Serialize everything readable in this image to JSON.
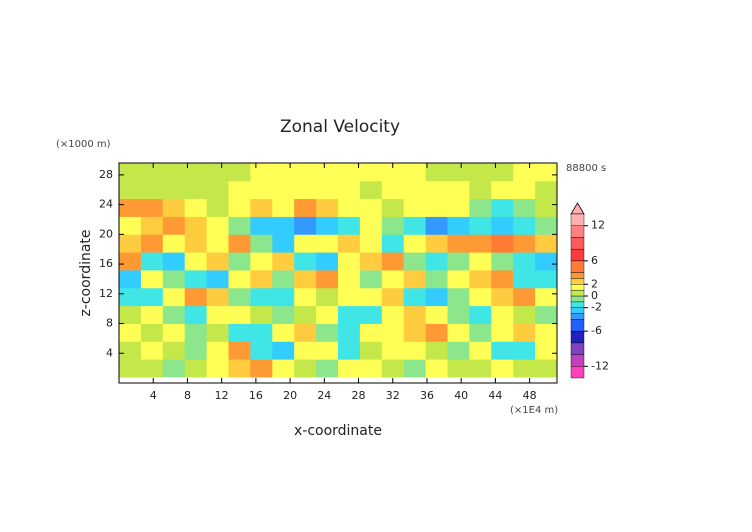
{
  "chart_data": {
    "type": "heatmap",
    "title": "Zonal Velocity",
    "y_unit": "(×1000 m)",
    "x_unit": "(×1E4 m)",
    "time_label": "88800 s",
    "xlabel": "x-coordinate",
    "ylabel": "z-coordinate",
    "xlim": [
      0,
      51.2
    ],
    "ylim": [
      0,
      29.6
    ],
    "xticks": [
      4,
      8,
      12,
      16,
      20,
      24,
      28,
      32,
      36,
      40,
      44,
      48
    ],
    "yticks": [
      4,
      8,
      12,
      16,
      20,
      24,
      28
    ],
    "x": [
      1.28,
      3.84,
      6.4,
      8.96,
      11.52,
      14.08,
      16.64,
      19.2,
      21.76,
      24.32,
      26.88,
      29.44,
      32,
      34.56,
      37.12,
      39.68,
      42.24,
      44.8,
      47.36,
      49.92
    ],
    "y": [
      2.0,
      4.4,
      6.8,
      9.2,
      11.6,
      14,
      16.4,
      18.8,
      21.2,
      23.6,
      26,
      28.4
    ],
    "z": [
      [
        0.5,
        0.5,
        -0.5,
        0.5,
        1.5,
        2.5,
        3,
        1.5,
        0.5,
        -0.5,
        1,
        1.5,
        0.5,
        -0.5,
        1,
        0.5,
        0.5,
        1,
        0.5,
        0.5
      ],
      [
        0.5,
        1.5,
        0.5,
        -1,
        1.5,
        3,
        -2,
        -2.5,
        1,
        1.5,
        -1.5,
        0.5,
        1.5,
        1,
        0.5,
        -1,
        1.5,
        -2,
        -1.5,
        1
      ],
      [
        1,
        0.5,
        1.5,
        -1,
        0.5,
        -2,
        -1.5,
        1.5,
        2.5,
        -1,
        -2,
        1,
        1.5,
        2.5,
        3,
        1.5,
        -1,
        1.5,
        2.5,
        1.5
      ],
      [
        0.5,
        1.5,
        -1,
        -2,
        1,
        1.5,
        0.5,
        -1,
        0.5,
        1.5,
        -1.5,
        -2,
        1,
        2.5,
        1.5,
        -1,
        -2,
        1.5,
        0.5,
        -1
      ],
      [
        -2,
        -1.5,
        1.5,
        3,
        2.5,
        -1,
        -2,
        -1.5,
        1,
        0.5,
        1.5,
        1,
        2.5,
        -2,
        -3,
        -1,
        1.5,
        2.5,
        3,
        1
      ],
      [
        -2.5,
        1.5,
        -1,
        -2,
        -3,
        1.5,
        2,
        -1,
        2.5,
        3.5,
        1.5,
        -1,
        1,
        2.5,
        -1,
        1.5,
        2.5,
        3,
        -1.5,
        -2
      ],
      [
        3,
        -1.5,
        -3,
        1.5,
        2,
        -1,
        1,
        2.5,
        -1.5,
        -3,
        1.5,
        2,
        3,
        -1,
        -2,
        -1,
        1.5,
        -1,
        -2,
        -2.5
      ],
      [
        2.5,
        3,
        1.5,
        2.5,
        1,
        3,
        -1,
        -2.5,
        1,
        1.5,
        2.5,
        1,
        -1.5,
        1,
        2.5,
        3,
        3.5,
        4,
        3,
        2.5
      ],
      [
        1.5,
        2.5,
        3,
        2,
        1,
        -1,
        -3,
        -2.5,
        -3.5,
        -3,
        -1.5,
        1,
        -1,
        -2,
        -4,
        -3,
        -2,
        -3,
        -1.5,
        -1
      ],
      [
        3,
        3.5,
        2.5,
        1.5,
        0.5,
        1.5,
        2.5,
        1.5,
        3,
        2.5,
        1,
        1.5,
        0.5,
        1,
        1.5,
        1,
        -1,
        -2,
        -1,
        0.5
      ],
      [
        0.5,
        0.5,
        0.5,
        0.5,
        0.5,
        1,
        1.5,
        1.5,
        1,
        1.5,
        1.5,
        0.5,
        1,
        1.5,
        1.5,
        1,
        0.5,
        1,
        1.5,
        0.5
      ],
      [
        0.5,
        0.5,
        0.5,
        0.5,
        0.5,
        0.5,
        1.5,
        1.5,
        1.5,
        1.5,
        1.5,
        1.5,
        1.5,
        1,
        0.5,
        0.5,
        0.5,
        0.5,
        1.5,
        1.5
      ]
    ],
    "levels": [
      -14,
      -12,
      -10,
      -8,
      -6,
      -4,
      -3,
      -2,
      -1,
      0,
      1,
      2,
      3,
      4,
      6,
      8,
      10,
      12,
      14
    ],
    "colors": [
      "#ff40c0",
      "#c040c0",
      "#8040c0",
      "#2020c0",
      "#2060ff",
      "#3399ff",
      "#33ccff",
      "#40e6e6",
      "#8ce68c",
      "#c4e84a",
      "#ffff55",
      "#ffcc40",
      "#ff9933",
      "#ff7a33",
      "#ff3a3a",
      "#ff5a5a",
      "#ff8080",
      "#ffb0b0"
    ],
    "colorbar_ticks": [
      -12,
      -6,
      -2,
      0,
      2,
      6,
      12
    ]
  }
}
